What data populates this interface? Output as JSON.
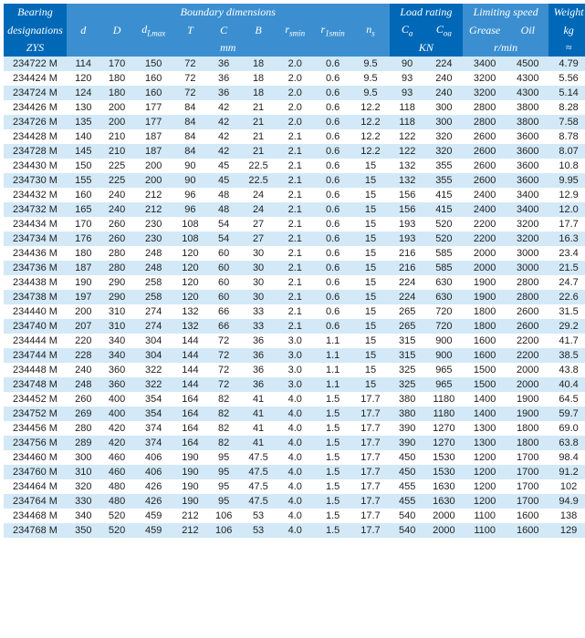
{
  "header": {
    "bearing_line1": "Bearing",
    "bearing_line2": "designations",
    "bearing_line3": "ZYS",
    "boundary": "Boundary dimensions",
    "load": "Load rating",
    "limit": "Limiting speed",
    "weight": "Weight",
    "d": "d",
    "D": "D",
    "dlmax": "d",
    "dlmax_sub": "Lmax",
    "T": "T",
    "C": "C",
    "B": "B",
    "rsmin": "r",
    "rsmin_sub": "smin",
    "r1smin": "r",
    "r1smin_sub": "1smin",
    "ns": "n",
    "ns_sub": "s",
    "Ca": "C",
    "Ca_sub": "a",
    "Coa": "C",
    "Coa_sub": "oa",
    "grease": "Grease",
    "oil": "Oil",
    "kg": "kg",
    "mm": "mm",
    "KN": "KN",
    "rmin": "r/min",
    "approx": "≈"
  },
  "rows": [
    {
      "des": "234722 M",
      "d": "114",
      "D": "170",
      "dl": "150",
      "T": "72",
      "C2": "36",
      "B": "18",
      "rs": "2.0",
      "r1": "0.6",
      "ns": "9.5",
      "Ca": "90",
      "Coa": "224",
      "gr": "3400",
      "oil": "4500",
      "wt": "4.79"
    },
    {
      "des": "234424 M",
      "d": "120",
      "D": "180",
      "dl": "160",
      "T": "72",
      "C2": "36",
      "B": "18",
      "rs": "2.0",
      "r1": "0.6",
      "ns": "9.5",
      "Ca": "93",
      "Coa": "240",
      "gr": "3200",
      "oil": "4300",
      "wt": "5.56"
    },
    {
      "des": "234724 M",
      "d": "124",
      "D": "180",
      "dl": "160",
      "T": "72",
      "C2": "36",
      "B": "18",
      "rs": "2.0",
      "r1": "0.6",
      "ns": "9.5",
      "Ca": "93",
      "Coa": "240",
      "gr": "3200",
      "oil": "4300",
      "wt": "5.14"
    },
    {
      "des": "234426 M",
      "d": "130",
      "D": "200",
      "dl": "177",
      "T": "84",
      "C2": "42",
      "B": "21",
      "rs": "2.0",
      "r1": "0.6",
      "ns": "12.2",
      "Ca": "118",
      "Coa": "300",
      "gr": "2800",
      "oil": "3800",
      "wt": "8.28"
    },
    {
      "des": "234726 M",
      "d": "135",
      "D": "200",
      "dl": "177",
      "T": "84",
      "C2": "42",
      "B": "21",
      "rs": "2.0",
      "r1": "0.6",
      "ns": "12.2",
      "Ca": "118",
      "Coa": "300",
      "gr": "2800",
      "oil": "3800",
      "wt": "7.58"
    },
    {
      "des": "234428 M",
      "d": "140",
      "D": "210",
      "dl": "187",
      "T": "84",
      "C2": "42",
      "B": "21",
      "rs": "2.1",
      "r1": "0.6",
      "ns": "12.2",
      "Ca": "122",
      "Coa": "320",
      "gr": "2600",
      "oil": "3600",
      "wt": "8.78"
    },
    {
      "des": "234728 M",
      "d": "145",
      "D": "210",
      "dl": "187",
      "T": "84",
      "C2": "42",
      "B": "21",
      "rs": "2.1",
      "r1": "0.6",
      "ns": "12.2",
      "Ca": "122",
      "Coa": "320",
      "gr": "2600",
      "oil": "3600",
      "wt": "8.07"
    },
    {
      "des": "234430 M",
      "d": "150",
      "D": "225",
      "dl": "200",
      "T": "90",
      "C2": "45",
      "B": "22.5",
      "rs": "2.1",
      "r1": "0.6",
      "ns": "15",
      "Ca": "132",
      "Coa": "355",
      "gr": "2600",
      "oil": "3600",
      "wt": "10.8"
    },
    {
      "des": "234730 M",
      "d": "155",
      "D": "225",
      "dl": "200",
      "T": "90",
      "C2": "45",
      "B": "22.5",
      "rs": "2.1",
      "r1": "0.6",
      "ns": "15",
      "Ca": "132",
      "Coa": "355",
      "gr": "2600",
      "oil": "3600",
      "wt": "9.95"
    },
    {
      "des": "234432 M",
      "d": "160",
      "D": "240",
      "dl": "212",
      "T": "96",
      "C2": "48",
      "B": "24",
      "rs": "2.1",
      "r1": "0.6",
      "ns": "15",
      "Ca": "156",
      "Coa": "415",
      "gr": "2400",
      "oil": "3400",
      "wt": "12.9"
    },
    {
      "des": "234732 M",
      "d": "165",
      "D": "240",
      "dl": "212",
      "T": "96",
      "C2": "48",
      "B": "24",
      "rs": "2.1",
      "r1": "0.6",
      "ns": "15",
      "Ca": "156",
      "Coa": "415",
      "gr": "2400",
      "oil": "3400",
      "wt": "12.0"
    },
    {
      "des": "234434 M",
      "d": "170",
      "D": "260",
      "dl": "230",
      "T": "108",
      "C2": "54",
      "B": "27",
      "rs": "2.1",
      "r1": "0.6",
      "ns": "15",
      "Ca": "193",
      "Coa": "520",
      "gr": "2200",
      "oil": "3200",
      "wt": "17.7"
    },
    {
      "des": "234734 M",
      "d": "176",
      "D": "260",
      "dl": "230",
      "T": "108",
      "C2": "54",
      "B": "27",
      "rs": "2.1",
      "r1": "0.6",
      "ns": "15",
      "Ca": "193",
      "Coa": "520",
      "gr": "2200",
      "oil": "3200",
      "wt": "16.3"
    },
    {
      "des": "234436 M",
      "d": "180",
      "D": "280",
      "dl": "248",
      "T": "120",
      "C2": "60",
      "B": "30",
      "rs": "2.1",
      "r1": "0.6",
      "ns": "15",
      "Ca": "216",
      "Coa": "585",
      "gr": "2000",
      "oil": "3000",
      "wt": "23.4"
    },
    {
      "des": "234736 M",
      "d": "187",
      "D": "280",
      "dl": "248",
      "T": "120",
      "C2": "60",
      "B": "30",
      "rs": "2.1",
      "r1": "0.6",
      "ns": "15",
      "Ca": "216",
      "Coa": "585",
      "gr": "2000",
      "oil": "3000",
      "wt": "21.5"
    },
    {
      "des": "234438 M",
      "d": "190",
      "D": "290",
      "dl": "258",
      "T": "120",
      "C2": "60",
      "B": "30",
      "rs": "2.1",
      "r1": "0.6",
      "ns": "15",
      "Ca": "224",
      "Coa": "630",
      "gr": "1900",
      "oil": "2800",
      "wt": "24.7"
    },
    {
      "des": "234738 M",
      "d": "197",
      "D": "290",
      "dl": "258",
      "T": "120",
      "C2": "60",
      "B": "30",
      "rs": "2.1",
      "r1": "0.6",
      "ns": "15",
      "Ca": "224",
      "Coa": "630",
      "gr": "1900",
      "oil": "2800",
      "wt": "22.6"
    },
    {
      "des": "234440 M",
      "d": "200",
      "D": "310",
      "dl": "274",
      "T": "132",
      "C2": "66",
      "B": "33",
      "rs": "2.1",
      "r1": "0.6",
      "ns": "15",
      "Ca": "265",
      "Coa": "720",
      "gr": "1800",
      "oil": "2600",
      "wt": "31.5"
    },
    {
      "des": "234740 M",
      "d": "207",
      "D": "310",
      "dl": "274",
      "T": "132",
      "C2": "66",
      "B": "33",
      "rs": "2.1",
      "r1": "0.6",
      "ns": "15",
      "Ca": "265",
      "Coa": "720",
      "gr": "1800",
      "oil": "2600",
      "wt": "29.2"
    },
    {
      "des": "234444 M",
      "d": "220",
      "D": "340",
      "dl": "304",
      "T": "144",
      "C2": "72",
      "B": "36",
      "rs": "3.0",
      "r1": "1.1",
      "ns": "15",
      "Ca": "315",
      "Coa": "900",
      "gr": "1600",
      "oil": "2200",
      "wt": "41.7"
    },
    {
      "des": "234744 M",
      "d": "228",
      "D": "340",
      "dl": "304",
      "T": "144",
      "C2": "72",
      "B": "36",
      "rs": "3.0",
      "r1": "1.1",
      "ns": "15",
      "Ca": "315",
      "Coa": "900",
      "gr": "1600",
      "oil": "2200",
      "wt": "38.5"
    },
    {
      "des": "234448 M",
      "d": "240",
      "D": "360",
      "dl": "322",
      "T": "144",
      "C2": "72",
      "B": "36",
      "rs": "3.0",
      "r1": "1.1",
      "ns": "15",
      "Ca": "325",
      "Coa": "965",
      "gr": "1500",
      "oil": "2000",
      "wt": "43.8"
    },
    {
      "des": "234748 M",
      "d": "248",
      "D": "360",
      "dl": "322",
      "T": "144",
      "C2": "72",
      "B": "36",
      "rs": "3.0",
      "r1": "1.1",
      "ns": "15",
      "Ca": "325",
      "Coa": "965",
      "gr": "1500",
      "oil": "2000",
      "wt": "40.4"
    },
    {
      "des": "234452 M",
      "d": "260",
      "D": "400",
      "dl": "354",
      "T": "164",
      "C2": "82",
      "B": "41",
      "rs": "4.0",
      "r1": "1.5",
      "ns": "17.7",
      "Ca": "380",
      "Coa": "1180",
      "gr": "1400",
      "oil": "1900",
      "wt": "64.5"
    },
    {
      "des": "234752 M",
      "d": "269",
      "D": "400",
      "dl": "354",
      "T": "164",
      "C2": "82",
      "B": "41",
      "rs": "4.0",
      "r1": "1.5",
      "ns": "17.7",
      "Ca": "380",
      "Coa": "1180",
      "gr": "1400",
      "oil": "1900",
      "wt": "59.7"
    },
    {
      "des": "234456 M",
      "d": "280",
      "D": "420",
      "dl": "374",
      "T": "164",
      "C2": "82",
      "B": "41",
      "rs": "4.0",
      "r1": "1.5",
      "ns": "17.7",
      "Ca": "390",
      "Coa": "1270",
      "gr": "1300",
      "oil": "1800",
      "wt": "69.0"
    },
    {
      "des": "234756 M",
      "d": "289",
      "D": "420",
      "dl": "374",
      "T": "164",
      "C2": "82",
      "B": "41",
      "rs": "4.0",
      "r1": "1.5",
      "ns": "17.7",
      "Ca": "390",
      "Coa": "1270",
      "gr": "1300",
      "oil": "1800",
      "wt": "63.8"
    },
    {
      "des": "234460 M",
      "d": "300",
      "D": "460",
      "dl": "406",
      "T": "190",
      "C2": "95",
      "B": "47.5",
      "rs": "4.0",
      "r1": "1.5",
      "ns": "17.7",
      "Ca": "450",
      "Coa": "1530",
      "gr": "1200",
      "oil": "1700",
      "wt": "98.4"
    },
    {
      "des": "234760 M",
      "d": "310",
      "D": "460",
      "dl": "406",
      "T": "190",
      "C2": "95",
      "B": "47.5",
      "rs": "4.0",
      "r1": "1.5",
      "ns": "17.7",
      "Ca": "450",
      "Coa": "1530",
      "gr": "1200",
      "oil": "1700",
      "wt": "91.2"
    },
    {
      "des": "234464 M",
      "d": "320",
      "D": "480",
      "dl": "426",
      "T": "190",
      "C2": "95",
      "B": "47.5",
      "rs": "4.0",
      "r1": "1.5",
      "ns": "17.7",
      "Ca": "455",
      "Coa": "1630",
      "gr": "1200",
      "oil": "1700",
      "wt": "102"
    },
    {
      "des": "234764 M",
      "d": "330",
      "D": "480",
      "dl": "426",
      "T": "190",
      "C2": "95",
      "B": "47.5",
      "rs": "4.0",
      "r1": "1.5",
      "ns": "17.7",
      "Ca": "455",
      "Coa": "1630",
      "gr": "1200",
      "oil": "1700",
      "wt": "94.9"
    },
    {
      "des": "234468 M",
      "d": "340",
      "D": "520",
      "dl": "459",
      "T": "212",
      "C2": "106",
      "B": "53",
      "rs": "4.0",
      "r1": "1.5",
      "ns": "17.7",
      "Ca": "540",
      "Coa": "2000",
      "gr": "1100",
      "oil": "1600",
      "wt": "138"
    },
    {
      "des": "234768 M",
      "d": "350",
      "D": "520",
      "dl": "459",
      "T": "212",
      "C2": "106",
      "B": "53",
      "rs": "4.0",
      "r1": "1.5",
      "ns": "17.7",
      "Ca": "540",
      "Coa": "2000",
      "gr": "1100",
      "oil": "1600",
      "wt": "129"
    }
  ]
}
